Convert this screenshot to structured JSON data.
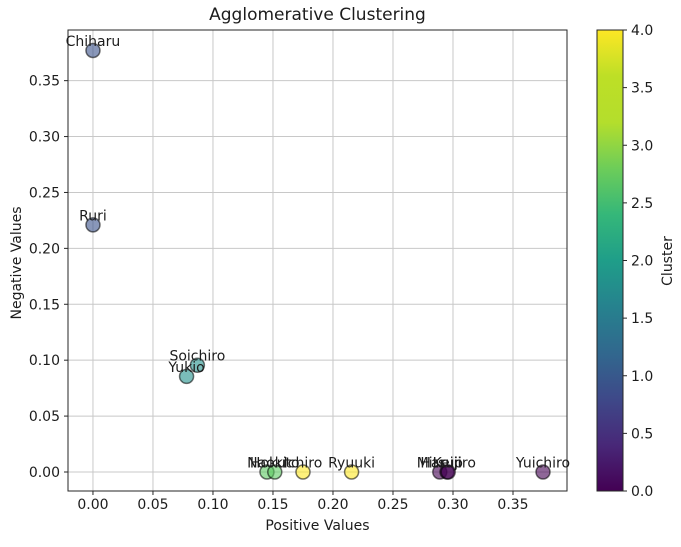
{
  "chart_data": {
    "type": "scatter",
    "title": "Agglomerative Clustering",
    "xlabel": "Positive Values",
    "ylabel": "Negative Values",
    "grid": true,
    "xlim": [
      -0.0208,
      0.395
    ],
    "ylim": [
      -0.017,
      0.3953
    ],
    "xticks": [
      0.0,
      0.05,
      0.1,
      0.15,
      0.2,
      0.25,
      0.3,
      0.35
    ],
    "xtick_labels": [
      "0.00",
      "0.05",
      "0.10",
      "0.15",
      "0.20",
      "0.25",
      "0.30",
      "0.35"
    ],
    "yticks": [
      0.0,
      0.05,
      0.1,
      0.15,
      0.2,
      0.25,
      0.3,
      0.35
    ],
    "ytick_labels": [
      "0.00",
      "0.05",
      "0.10",
      "0.15",
      "0.20",
      "0.25",
      "0.30",
      "0.35"
    ],
    "points": [
      {
        "name": "Chiharu",
        "x": 0.0,
        "y": 0.377,
        "cluster": 1
      },
      {
        "name": "Ruri",
        "x": 0.0,
        "y": 0.221,
        "cluster": 1
      },
      {
        "name": "Soichiro",
        "x": 0.087,
        "y": 0.0955,
        "cluster": 2
      },
      {
        "name": "Yukio",
        "x": 0.078,
        "y": 0.0855,
        "cluster": 2
      },
      {
        "name": "Naoki",
        "x": 0.145,
        "y": 0.0,
        "cluster": 3
      },
      {
        "name": "Hokuto",
        "x": 0.1515,
        "y": 0.0,
        "cluster": 3
      },
      {
        "name": "Ichiro",
        "x": 0.175,
        "y": 0.0,
        "cluster": 4
      },
      {
        "name": "Ryuuki",
        "x": 0.2155,
        "y": 0.0,
        "cluster": 4
      },
      {
        "name": "Mitsuo",
        "x": 0.289,
        "y": 0.0,
        "cluster": 0
      },
      {
        "name": "Keiji",
        "x": 0.295,
        "y": 0.0,
        "cluster": 0
      },
      {
        "name": "Harujiro",
        "x": 0.296,
        "y": 0.0,
        "cluster": 0
      },
      {
        "name": "Yuichiro",
        "x": 0.375,
        "y": 0.0,
        "cluster": 0
      }
    ],
    "cluster_colors": {
      "0": "#440154",
      "1": "#3b528b",
      "2": "#21918c",
      "3": "#5ec962",
      "4": "#fde725"
    },
    "point_alpha": 0.6,
    "edge_color": "#000000",
    "grid_color": "#c8c8c8",
    "spine_color": "#262626",
    "colorbar": {
      "label": "Cluster",
      "vmin": 0.0,
      "vmax": 4.0,
      "ticks": [
        0.0,
        0.5,
        1.0,
        1.5,
        2.0,
        2.5,
        3.0,
        3.5,
        4.0
      ],
      "tick_labels": [
        "0.0",
        "0.5",
        "1.0",
        "1.5",
        "2.0",
        "2.5",
        "3.0",
        "3.5",
        "4.0"
      ],
      "gradient_stops": [
        [
          "0.0",
          "#440154"
        ],
        [
          "0.1",
          "#482878"
        ],
        [
          "0.2",
          "#3e4989"
        ],
        [
          "0.3",
          "#31688e"
        ],
        [
          "0.4",
          "#26828e"
        ],
        [
          "0.5",
          "#1f9e89"
        ],
        [
          "0.6",
          "#35b779"
        ],
        [
          "0.7",
          "#6dcd59"
        ],
        [
          "0.8",
          "#b4de2c"
        ],
        [
          "0.9",
          "#bddf26"
        ],
        [
          "1.0",
          "#fde725"
        ]
      ]
    }
  }
}
